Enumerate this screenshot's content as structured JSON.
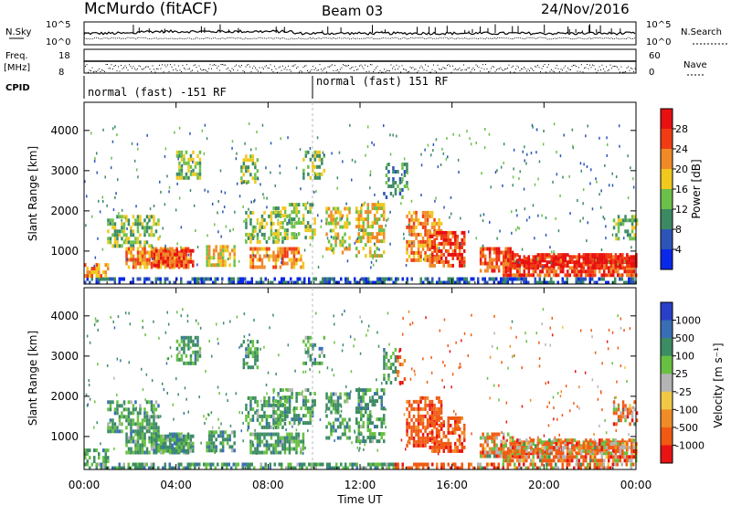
{
  "header": {
    "station": "McMurdo (fitACF)",
    "beam": "Beam 03",
    "date": "24/Nov/2016"
  },
  "strips": {
    "nsky_label": "N.Sky",
    "nsearch_label": "N.Search",
    "noise_ticks": [
      "10^5",
      "10^0"
    ],
    "freq_label_1": "Freq.",
    "freq_label_2": "[MHz]",
    "freq_ticks": [
      "18",
      "8"
    ],
    "nave_label": "Nave",
    "nave_ticks": [
      "60",
      "0"
    ],
    "cpid_label": "CPID",
    "cpid_left": "normal (fast) -151 RF",
    "cpid_right": "normal (fast) 151 RF"
  },
  "chart_data": [
    {
      "type": "heatmap",
      "panel": "power",
      "ylabel": "Slant Range [km]",
      "yticks": [
        1000,
        2000,
        3000,
        4000
      ],
      "ylim": [
        180,
        4700
      ],
      "colorbar_label": "Power [dB]",
      "colorbar_ticks": [
        4,
        8,
        12,
        16,
        20,
        24,
        28
      ],
      "colorbar_colors": [
        "#0a28e8",
        "#2d55b8",
        "#3b8a64",
        "#6cc04a",
        "#f0c81e",
        "#f08a28",
        "#f03c14",
        "#e81010"
      ],
      "colorbar_range": [
        0,
        32
      ]
    },
    {
      "type": "heatmap",
      "panel": "velocity",
      "ylabel": "Slant Range [km]",
      "yticks": [
        1000,
        2000,
        3000,
        4000
      ],
      "ylim": [
        180,
        4700
      ],
      "colorbar_label": "Velocity [m s⁻¹]",
      "colorbar_ticks": [
        "1000",
        "500",
        "100",
        "25",
        "-25",
        "-100",
        "-500",
        "-1000"
      ],
      "colorbar_colors": [
        "#2840c8",
        "#3a6eb4",
        "#3c8c64",
        "#68c042",
        "#b4b4b4",
        "#f0c846",
        "#f08c28",
        "#f05a14",
        "#e81414"
      ]
    }
  ],
  "xaxis": {
    "ticks": [
      "00:00",
      "04:00",
      "08:00",
      "12:00",
      "16:00",
      "20:00",
      "00:00"
    ],
    "label": "Time UT"
  }
}
